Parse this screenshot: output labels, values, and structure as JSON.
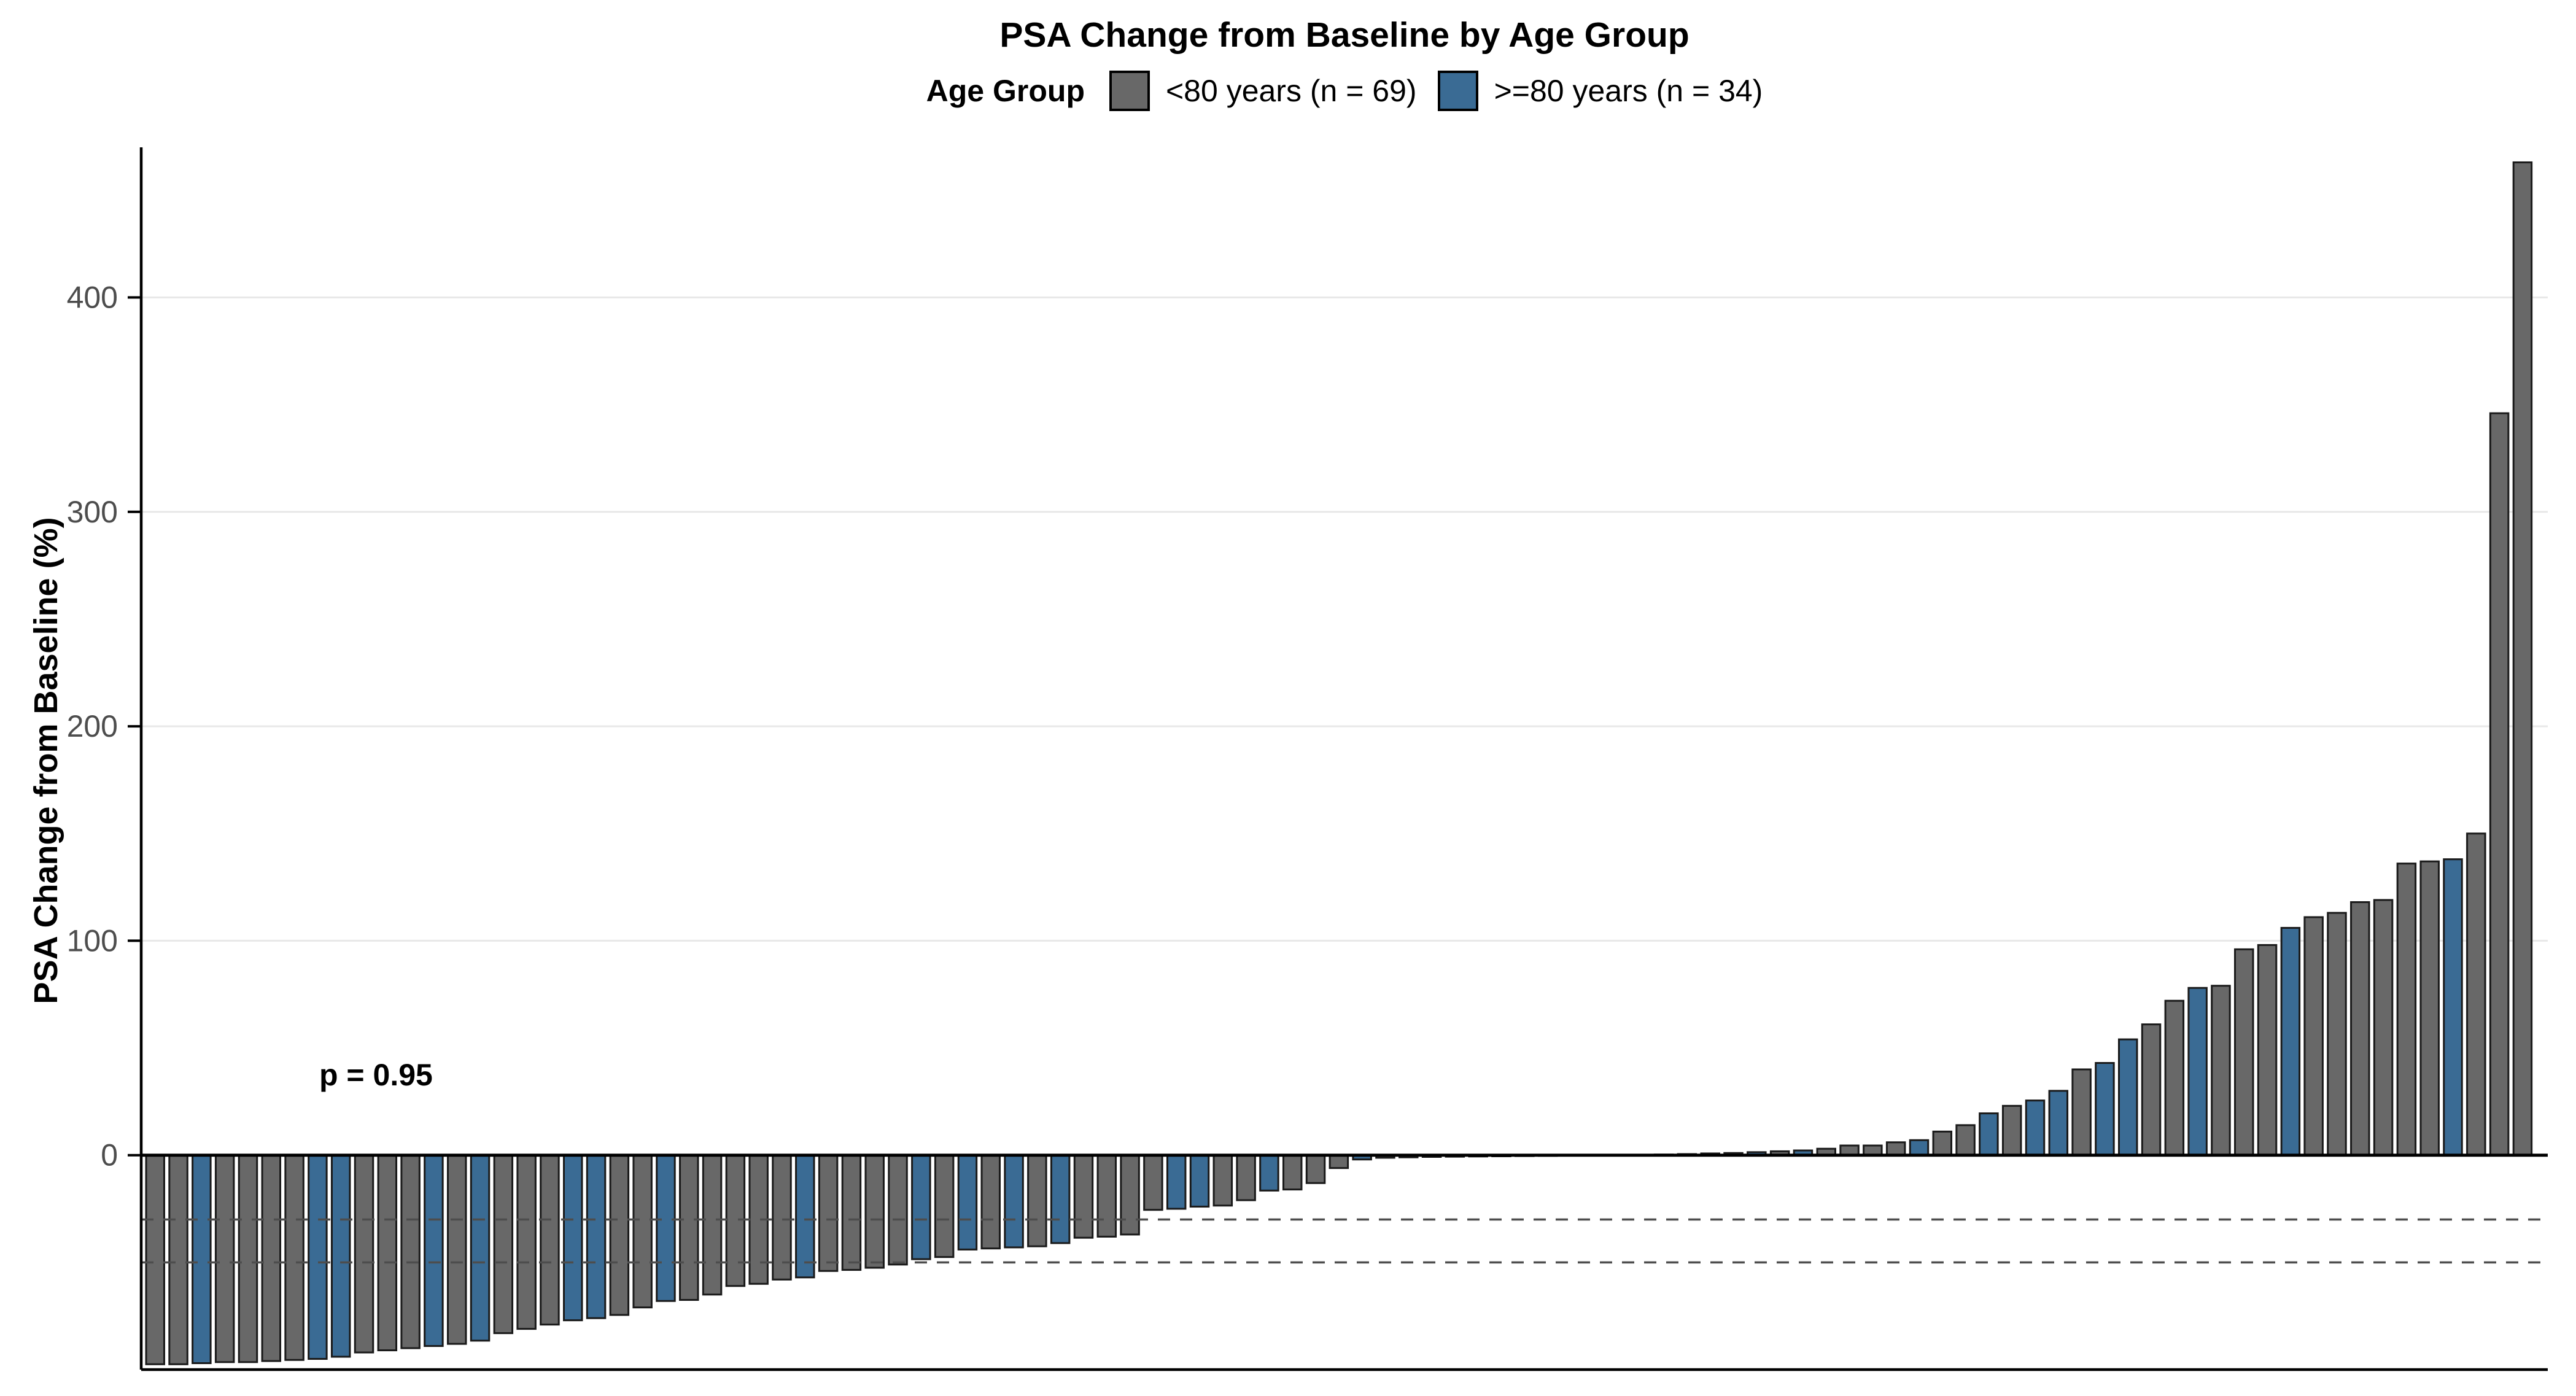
{
  "header": {
    "title": "PSA Change from Baseline by Age Group"
  },
  "legend": {
    "title": "Age Group",
    "items": [
      {
        "key": "lt",
        "label": "<80 years (n = 69)",
        "color": "#686868"
      },
      {
        "key": "ge",
        "label": ">=80 years (n = 34)",
        "color": "#3A6B94"
      }
    ]
  },
  "annotation": {
    "text": "p = 0.95"
  },
  "chart_data": {
    "type": "bar",
    "subtype": "waterfall",
    "title": "PSA Change from Baseline by Age Group",
    "xlabel": "",
    "ylabel": "PSA Change from Baseline (%)",
    "yticks": [
      0,
      100,
      200,
      300,
      400
    ],
    "ylim": [
      -100,
      470
    ],
    "grid": "horizontal-major-only",
    "legend_position": "top",
    "threshold_lines": [
      -30,
      -50
    ],
    "zero_line": 0,
    "colors": {
      "lt": "#686868",
      "ge": "#3A6B94",
      "outline": "#1A1A1A",
      "axis": "#000000",
      "gridline": "#E8E8E8",
      "tick_text": "#4D4D4D",
      "dashed_line": "#4D4D4D"
    },
    "series": [
      {
        "name": "<80 years (n = 69)",
        "key": "lt",
        "n": 69
      },
      {
        "name": ">=80 years (n = 34)",
        "key": "ge",
        "n": 34
      }
    ],
    "bars": [
      {
        "v": -97.5,
        "g": "lt"
      },
      {
        "v": -97.5,
        "g": "lt"
      },
      {
        "v": -97,
        "g": "ge"
      },
      {
        "v": -96.5,
        "g": "lt"
      },
      {
        "v": -96.5,
        "g": "lt"
      },
      {
        "v": -96,
        "g": "lt"
      },
      {
        "v": -95.5,
        "g": "lt"
      },
      {
        "v": -95,
        "g": "ge"
      },
      {
        "v": -94,
        "g": "ge"
      },
      {
        "v": -92,
        "g": "lt"
      },
      {
        "v": -91,
        "g": "lt"
      },
      {
        "v": -90,
        "g": "lt"
      },
      {
        "v": -89,
        "g": "ge"
      },
      {
        "v": -88,
        "g": "lt"
      },
      {
        "v": -86.5,
        "g": "ge"
      },
      {
        "v": -83,
        "g": "lt"
      },
      {
        "v": -81,
        "g": "lt"
      },
      {
        "v": -79,
        "g": "lt"
      },
      {
        "v": -77,
        "g": "ge"
      },
      {
        "v": -76,
        "g": "ge"
      },
      {
        "v": -74.5,
        "g": "lt"
      },
      {
        "v": -71,
        "g": "lt"
      },
      {
        "v": -68,
        "g": "ge"
      },
      {
        "v": -67.5,
        "g": "lt"
      },
      {
        "v": -65,
        "g": "lt"
      },
      {
        "v": -61,
        "g": "lt"
      },
      {
        "v": -60,
        "g": "lt"
      },
      {
        "v": -58,
        "g": "lt"
      },
      {
        "v": -57,
        "g": "ge"
      },
      {
        "v": -54,
        "g": "lt"
      },
      {
        "v": -53.5,
        "g": "lt"
      },
      {
        "v": -52.5,
        "g": "lt"
      },
      {
        "v": -51,
        "g": "lt"
      },
      {
        "v": -48.5,
        "g": "ge"
      },
      {
        "v": -47.5,
        "g": "lt"
      },
      {
        "v": -44,
        "g": "ge"
      },
      {
        "v": -43.5,
        "g": "lt"
      },
      {
        "v": -43,
        "g": "ge"
      },
      {
        "v": -42.5,
        "g": "lt"
      },
      {
        "v": -41,
        "g": "ge"
      },
      {
        "v": -38.5,
        "g": "lt"
      },
      {
        "v": -38,
        "g": "lt"
      },
      {
        "v": -37,
        "g": "lt"
      },
      {
        "v": -25.5,
        "g": "lt"
      },
      {
        "v": -25,
        "g": "ge"
      },
      {
        "v": -24,
        "g": "ge"
      },
      {
        "v": -23.5,
        "g": "lt"
      },
      {
        "v": -21,
        "g": "lt"
      },
      {
        "v": -16.5,
        "g": "ge"
      },
      {
        "v": -16,
        "g": "lt"
      },
      {
        "v": -13,
        "g": "lt"
      },
      {
        "v": -6,
        "g": "lt"
      },
      {
        "v": -2,
        "g": "ge"
      },
      {
        "v": -1.2,
        "g": "lt"
      },
      {
        "v": -1,
        "g": "ge"
      },
      {
        "v": -0.8,
        "g": "lt"
      },
      {
        "v": -0.7,
        "g": "lt"
      },
      {
        "v": -0.6,
        "g": "ge"
      },
      {
        "v": -0.5,
        "g": "lt"
      },
      {
        "v": -0.4,
        "g": "lt"
      },
      {
        "v": -0.3,
        "g": "ge"
      },
      {
        "v": -0.2,
        "g": "lt"
      },
      {
        "v": -0.1,
        "g": "ge"
      },
      {
        "v": 0,
        "g": "lt"
      },
      {
        "v": 0.1,
        "g": "lt"
      },
      {
        "v": 0.3,
        "g": "ge"
      },
      {
        "v": 0.5,
        "g": "lt"
      },
      {
        "v": 0.8,
        "g": "ge"
      },
      {
        "v": 1,
        "g": "lt"
      },
      {
        "v": 1.4,
        "g": "ge"
      },
      {
        "v": 1.8,
        "g": "lt"
      },
      {
        "v": 2.2,
        "g": "ge"
      },
      {
        "v": 3,
        "g": "lt"
      },
      {
        "v": 4.5,
        "g": "lt"
      },
      {
        "v": 4.5,
        "g": "lt"
      },
      {
        "v": 6,
        "g": "lt"
      },
      {
        "v": 7,
        "g": "ge"
      },
      {
        "v": 11,
        "g": "lt"
      },
      {
        "v": 14,
        "g": "lt"
      },
      {
        "v": 19.5,
        "g": "ge"
      },
      {
        "v": 23,
        "g": "lt"
      },
      {
        "v": 25.5,
        "g": "ge"
      },
      {
        "v": 30,
        "g": "ge"
      },
      {
        "v": 40,
        "g": "lt"
      },
      {
        "v": 43,
        "g": "ge"
      },
      {
        "v": 54,
        "g": "ge"
      },
      {
        "v": 61,
        "g": "lt"
      },
      {
        "v": 72,
        "g": "lt"
      },
      {
        "v": 78,
        "g": "ge"
      },
      {
        "v": 79,
        "g": "lt"
      },
      {
        "v": 96,
        "g": "lt"
      },
      {
        "v": 98,
        "g": "lt"
      },
      {
        "v": 106,
        "g": "ge"
      },
      {
        "v": 111,
        "g": "lt"
      },
      {
        "v": 113,
        "g": "lt"
      },
      {
        "v": 118,
        "g": "lt"
      },
      {
        "v": 119,
        "g": "lt"
      },
      {
        "v": 136,
        "g": "lt"
      },
      {
        "v": 137,
        "g": "lt"
      },
      {
        "v": 138,
        "g": "ge"
      },
      {
        "v": 150,
        "g": "lt"
      },
      {
        "v": 346,
        "g": "lt"
      },
      {
        "v": 463,
        "g": "lt"
      }
    ],
    "annotations": [
      {
        "text": "p = 0.95",
        "x_frac": 0.08,
        "y_value": 32
      }
    ]
  }
}
